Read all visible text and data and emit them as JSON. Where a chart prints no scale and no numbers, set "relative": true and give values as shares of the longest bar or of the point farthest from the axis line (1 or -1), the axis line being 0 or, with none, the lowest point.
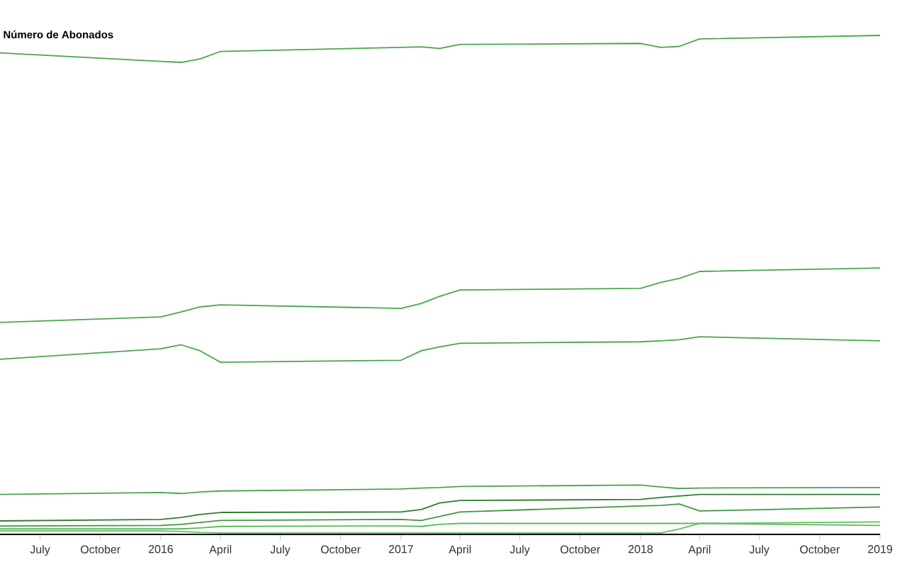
{
  "chart_data": {
    "type": "line",
    "title": "Número de Abonados",
    "relative": true,
    "x": [
      "2015-05-01",
      "2016-01-01",
      "2016-02-01",
      "2016-03-01",
      "2016-04-01",
      "2017-01-01",
      "2017-02-01",
      "2017-03-01",
      "2017-04-01",
      "2018-01-01",
      "2018-02-01",
      "2018-03-01",
      "2018-04-01",
      "2019-01-01"
    ],
    "xlim": [
      "2015-05-01",
      "2019-01-01"
    ],
    "xticks": [
      {
        "value": "2015-07-01",
        "label": "July"
      },
      {
        "value": "2015-10-01",
        "label": "October"
      },
      {
        "value": "2016-01-01",
        "label": "2016"
      },
      {
        "value": "2016-04-01",
        "label": "April"
      },
      {
        "value": "2016-07-01",
        "label": "July"
      },
      {
        "value": "2016-10-01",
        "label": "October"
      },
      {
        "value": "2017-01-01",
        "label": "2017"
      },
      {
        "value": "2017-04-01",
        "label": "April"
      },
      {
        "value": "2017-07-01",
        "label": "July"
      },
      {
        "value": "2017-10-01",
        "label": "October"
      },
      {
        "value": "2018-01-01",
        "label": "2018"
      },
      {
        "value": "2018-04-01",
        "label": "April"
      },
      {
        "value": "2018-07-01",
        "label": "July"
      },
      {
        "value": "2018-10-01",
        "label": "October"
      },
      {
        "value": "2019-01-01",
        "label": "2019"
      }
    ],
    "series": [
      {
        "color": "#4aa64a",
        "values": [
          0.965,
          0.948,
          0.946,
          0.953,
          0.968,
          0.976,
          0.977,
          0.974,
          0.982,
          0.984,
          0.976,
          0.978,
          0.993,
          1
        ]
      },
      {
        "color": "#4aa64a",
        "values": [
          0.425,
          0.436,
          0.446,
          0.456,
          0.46,
          0.453,
          0.463,
          0.477,
          0.49,
          0.493,
          0.505,
          0.513,
          0.527,
          0.534
        ]
      },
      {
        "color": "#4aa64a",
        "values": [
          0.351,
          0.372,
          0.38,
          0.368,
          0.345,
          0.349,
          0.368,
          0.376,
          0.383,
          0.386,
          0.388,
          0.39,
          0.396,
          0.388
        ]
      },
      {
        "color": "#4aa64a",
        "values": [
          0.08,
          0.084,
          0.082,
          0.085,
          0.087,
          0.091,
          0.093,
          0.094,
          0.096,
          0.099,
          0.095,
          0.092,
          0.093,
          0.094
        ]
      },
      {
        "color": "#2f7f2f",
        "values": [
          0.027,
          0.03,
          0.034,
          0.04,
          0.044,
          0.045,
          0.05,
          0.063,
          0.068,
          0.07,
          0.074,
          0.077,
          0.08,
          0.08
        ]
      },
      {
        "color": "#3d9a3d",
        "values": [
          0.017,
          0.018,
          0.02,
          0.024,
          0.028,
          0.03,
          0.028,
          0.036,
          0.045,
          0.057,
          0.058,
          0.061,
          0.047,
          0.055
        ]
      },
      {
        "color": "#5cb85c",
        "values": [
          0.011,
          0.011,
          0.011,
          0.013,
          0.016,
          0.017,
          0.016,
          0.02,
          0.022,
          0.022,
          0.022,
          0.022,
          0.022,
          0.018
        ]
      },
      {
        "color": "#66bb66",
        "values": [
          0.007,
          0.007,
          0.006,
          0.004,
          0.003,
          0.003,
          0.003,
          0.003,
          0.003,
          0.003,
          0.003,
          0.011,
          0.022,
          0.025
        ]
      }
    ]
  }
}
